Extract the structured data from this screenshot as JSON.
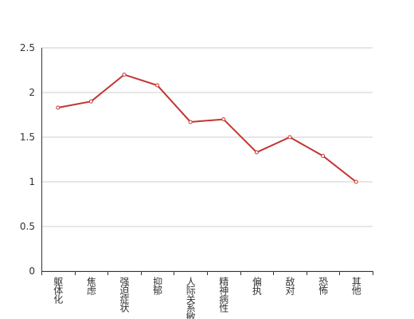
{
  "chart_data": {
    "type": "line",
    "categories": [
      "躯体化",
      "焦虑",
      "强迫症状",
      "抑郁",
      "人际关系敏感",
      "精神病性",
      "偏执",
      "敌对",
      "恐怖",
      "其他"
    ],
    "values": [
      1.83,
      1.9,
      2.2,
      2.08,
      1.67,
      1.7,
      1.33,
      1.5,
      1.29,
      1.0
    ],
    "color": "#c23531",
    "ylim": [
      0,
      2.5
    ],
    "yticks": [
      0,
      0.5,
      1,
      1.5,
      2,
      2.5
    ],
    "grid": true
  }
}
